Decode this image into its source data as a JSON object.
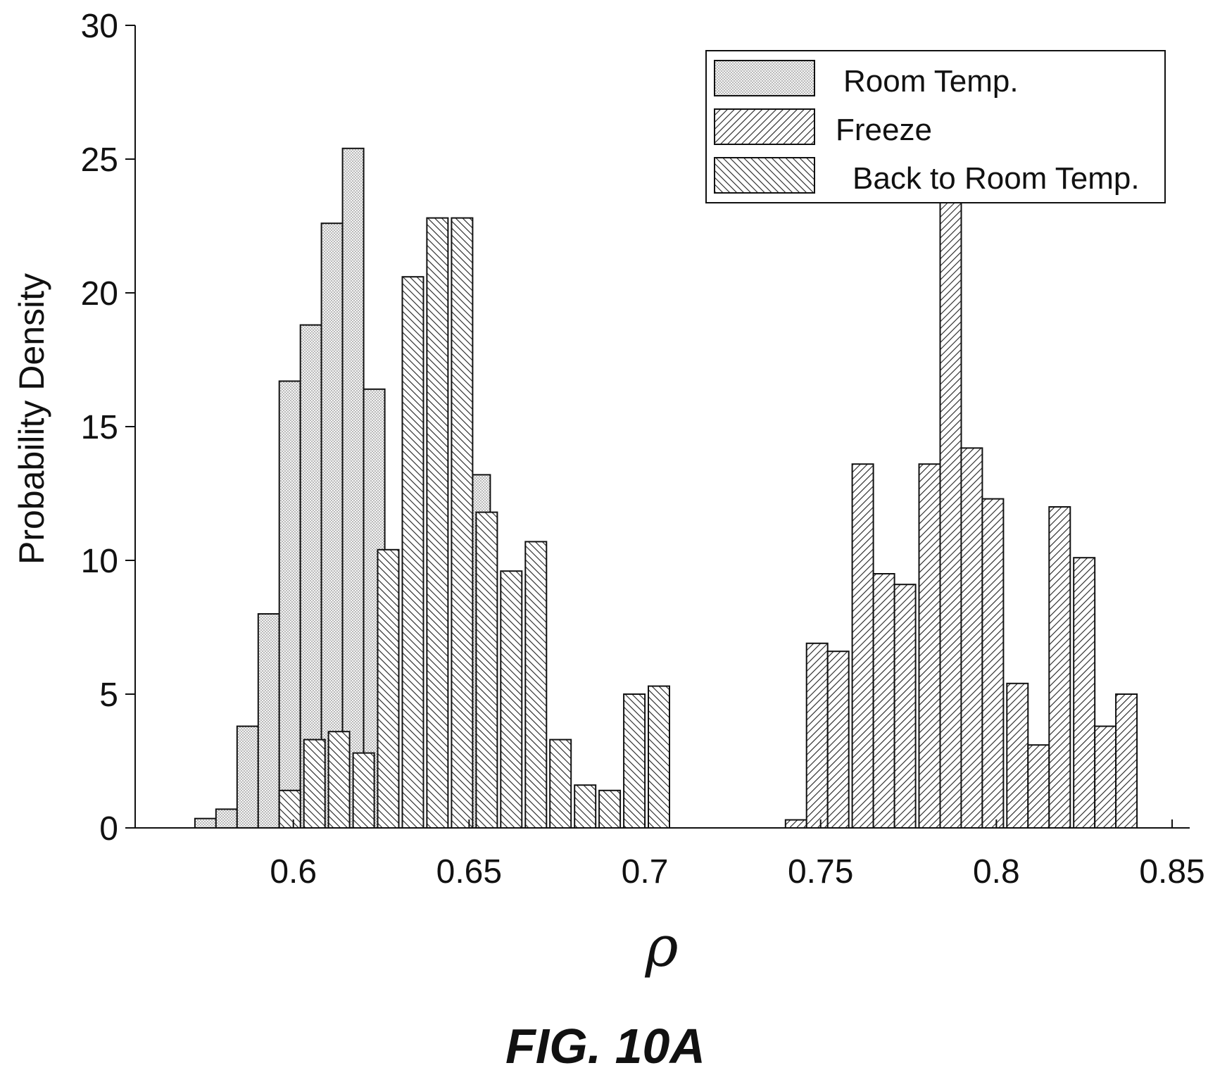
{
  "figure": {
    "caption": "FIG. 10A"
  },
  "chart_data": {
    "type": "bar",
    "ylabel": "Probability Density",
    "xlabel": "ρ",
    "xlim": [
      0.555,
      0.855
    ],
    "ylim": [
      0,
      30
    ],
    "bin_width": 0.006,
    "x_ticks": [
      {
        "value": 0.6,
        "label": "0.6"
      },
      {
        "value": 0.65,
        "label": "0.65"
      },
      {
        "value": 0.7,
        "label": "0.7"
      },
      {
        "value": 0.75,
        "label": "0.75"
      },
      {
        "value": 0.8,
        "label": "0.8"
      },
      {
        "value": 0.85,
        "label": "0.85"
      }
    ],
    "y_ticks": [
      {
        "value": 0,
        "label": "0"
      },
      {
        "value": 5,
        "label": "5"
      },
      {
        "value": 10,
        "label": "10"
      },
      {
        "value": 15,
        "label": "15"
      },
      {
        "value": 20,
        "label": "20"
      },
      {
        "value": 25,
        "label": "25"
      },
      {
        "value": 30,
        "label": "30"
      }
    ],
    "legend_position": "top-right",
    "series": [
      {
        "name": "Room Temp.",
        "pattern": "dots",
        "bins": [
          {
            "x": 0.575,
            "y": 0.35
          },
          {
            "x": 0.581,
            "y": 0.7
          },
          {
            "x": 0.587,
            "y": 3.8
          },
          {
            "x": 0.593,
            "y": 8.0
          },
          {
            "x": 0.599,
            "y": 16.7
          },
          {
            "x": 0.605,
            "y": 18.8
          },
          {
            "x": 0.611,
            "y": 22.6
          },
          {
            "x": 0.617,
            "y": 25.4
          },
          {
            "x": 0.623,
            "y": 16.4
          },
          {
            "x": 0.629,
            "y": 0
          },
          {
            "x": 0.635,
            "y": 0
          },
          {
            "x": 0.641,
            "y": 0
          },
          {
            "x": 0.647,
            "y": 0
          },
          {
            "x": 0.653,
            "y": 13.2
          }
        ]
      },
      {
        "name": "Freeze",
        "pattern": "hatch-right",
        "bins": [
          {
            "x": 0.743,
            "y": 0.3
          },
          {
            "x": 0.749,
            "y": 6.9
          },
          {
            "x": 0.755,
            "y": 6.6
          },
          {
            "x": 0.762,
            "y": 13.6
          },
          {
            "x": 0.768,
            "y": 9.5
          },
          {
            "x": 0.774,
            "y": 9.1
          },
          {
            "x": 0.781,
            "y": 13.6
          },
          {
            "x": 0.787,
            "y": 23.6
          },
          {
            "x": 0.793,
            "y": 14.2
          },
          {
            "x": 0.799,
            "y": 12.3
          },
          {
            "x": 0.806,
            "y": 5.4
          },
          {
            "x": 0.812,
            "y": 3.1
          },
          {
            "x": 0.818,
            "y": 12.0
          },
          {
            "x": 0.825,
            "y": 10.1
          },
          {
            "x": 0.831,
            "y": 3.8
          },
          {
            "x": 0.837,
            "y": 5.0
          }
        ]
      },
      {
        "name": "Back to Room Temp.",
        "pattern": "hatch-left",
        "bins": [
          {
            "x": 0.599,
            "y": 1.4
          },
          {
            "x": 0.606,
            "y": 3.3
          },
          {
            "x": 0.613,
            "y": 3.6
          },
          {
            "x": 0.62,
            "y": 2.8
          },
          {
            "x": 0.627,
            "y": 10.4
          },
          {
            "x": 0.634,
            "y": 20.6
          },
          {
            "x": 0.641,
            "y": 22.8
          },
          {
            "x": 0.648,
            "y": 22.8
          },
          {
            "x": 0.655,
            "y": 11.8
          },
          {
            "x": 0.662,
            "y": 9.6
          },
          {
            "x": 0.669,
            "y": 10.7
          },
          {
            "x": 0.676,
            "y": 3.3
          },
          {
            "x": 0.683,
            "y": 1.6
          },
          {
            "x": 0.69,
            "y": 1.4
          },
          {
            "x": 0.697,
            "y": 5.0
          },
          {
            "x": 0.704,
            "y": 5.3
          }
        ]
      }
    ]
  }
}
